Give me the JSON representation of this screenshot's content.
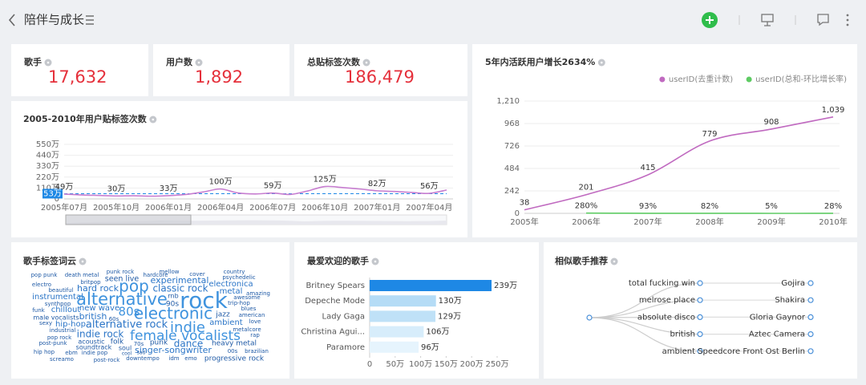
{
  "header": {
    "title": "陪伴与成长"
  },
  "kpis": [
    {
      "label": "歌手",
      "value": "17,632"
    },
    {
      "label": "用户数",
      "value": "1,892"
    },
    {
      "label": "总贴标签次数",
      "value": "186,479"
    }
  ],
  "charts": {
    "tag_trend": {
      "type": "line",
      "title": "2005-2010年用户贴标签次数",
      "categories": [
        "2005年07月",
        null,
        null,
        "2005年10月",
        null,
        null,
        "2006年01月",
        null,
        null,
        "2006年04月",
        null,
        null,
        "2006年07月",
        null,
        null,
        "2006年10月",
        null,
        null,
        "2007年01月",
        null,
        null,
        "2007年04月",
        null
      ],
      "series": [
        {
          "color": "#c77dd0",
          "values": [
            49,
            40,
            35,
            30,
            32,
            28,
            33,
            45,
            70,
            100,
            60,
            50,
            59,
            45,
            80,
            125,
            115,
            100,
            82,
            75,
            65,
            56,
            90
          ],
          "value_labels": [
            "49万",
            null,
            null,
            "30万",
            null,
            null,
            "33万",
            null,
            null,
            "100万",
            null,
            null,
            "59万",
            null,
            null,
            "125万",
            null,
            null,
            "82万",
            null,
            null,
            "56万",
            null
          ]
        }
      ],
      "reference_line": {
        "value": 53,
        "label": "53万"
      },
      "ylim": [
        0,
        550
      ],
      "yticks": [
        0,
        {
          "value": 110,
          "label": "110万"
        },
        {
          "value": 220,
          "label": "220万"
        },
        {
          "value": 330,
          "label": "330万"
        },
        {
          "value": 440,
          "label": "440万"
        },
        {
          "value": 550,
          "label": "550万"
        }
      ],
      "grid": true
    },
    "active_users": {
      "type": "line",
      "title": "5年内活跃用户增长2634%",
      "categories": [
        "2005年",
        "2006年",
        "2007年",
        "2008年",
        "2009年",
        "2010年"
      ],
      "series": [
        {
          "name": "userID(去重计数)",
          "color": "#c06ac0",
          "values": [
            38,
            201,
            415,
            779,
            908,
            1039
          ],
          "value_labels": [
            "38",
            "201",
            "415",
            "779",
            "908",
            "1,039"
          ]
        },
        {
          "name": "userID(总和-环比增长率)",
          "color": "#5ecb63",
          "values": [
            null,
            2.8,
            0.93,
            0.82,
            0.05,
            0.28
          ],
          "value_labels": [
            null,
            "280%",
            "93%",
            "82%",
            "5%",
            "28%"
          ]
        }
      ],
      "ylim": [
        0,
        1210
      ],
      "yticks": [
        0,
        242,
        484,
        726,
        968,
        {
          "value": 1210,
          "label": "1,210"
        }
      ],
      "grid": true,
      "legend": "top-right"
    },
    "tag_cloud": {
      "type": "wordcloud",
      "title": "歌手标签词云",
      "words": [
        "pop punk",
        "death metal",
        "punk rock",
        "mellow",
        "cover",
        "country",
        "psychedelic",
        "electro",
        "britpop",
        "seen live",
        "hardcore",
        "experimental",
        "electronica",
        "beautiful",
        "hard rock",
        "pop",
        "classic rock",
        "amazing",
        "instrumental",
        "rnb",
        "metal",
        "awesome",
        "synthpop",
        "alternative",
        "rock",
        "90s",
        "trip-hop",
        "funk",
        "chillout",
        "new wave",
        "80s",
        "electronic",
        "blues",
        "male vocalists",
        "british",
        "60s",
        "jazz",
        "american",
        "sexy",
        "hip-hop",
        "alternative rock",
        "indie",
        "ambient",
        "love",
        "industrial",
        "female vocalists",
        "metalcore",
        "pop rock",
        "rap",
        "indie rock",
        "post-punk",
        "acoustic",
        "folk",
        "70s",
        "punk",
        "dance",
        "heavy metal",
        "soundtrack",
        "soul",
        "singer-songwriter",
        "00s",
        "brazilian",
        "hip hop",
        "ebm",
        "indie pop",
        "cool",
        "sad",
        "screamo",
        "post-rock",
        "downtempo",
        "idm",
        "emo",
        "progressive rock"
      ]
    },
    "top_singers": {
      "type": "hbar",
      "title": "最爱欢迎的歌手",
      "categories": [
        "Britney Spears",
        "Depeche Mode",
        "Lady Gaga",
        "Christina Agui...",
        "Paramore"
      ],
      "values": [
        239,
        130,
        129,
        106,
        96
      ],
      "value_labels": [
        "239万",
        "130万",
        "129万",
        "106万",
        "96万"
      ],
      "colors": [
        "#1e88e5",
        "#b5dcf6",
        "#bfe1f7",
        "#d7edfb",
        "#e6f4fd"
      ],
      "xlim": [
        0,
        250
      ],
      "xticks": [
        0,
        {
          "value": 50,
          "label": "50万"
        },
        {
          "value": 100,
          "label": "100万"
        },
        {
          "value": 150,
          "label": "150万"
        },
        {
          "value": 200,
          "label": "200万"
        },
        {
          "value": 250,
          "label": "250万"
        }
      ]
    },
    "similar": {
      "type": "tree",
      "title": "相似歌手推荐",
      "pairs": [
        {
          "tag": "total fucking win",
          "artist": "Gojira"
        },
        {
          "tag": "melrose place",
          "artist": "Shakira"
        },
        {
          "tag": "absolute disco",
          "artist": "Gloria Gaynor"
        },
        {
          "tag": "british",
          "artist": "Aztec Camera"
        },
        {
          "tag": "ambient",
          "artist": "Speedcore Front Ost Berlin"
        }
      ]
    }
  }
}
